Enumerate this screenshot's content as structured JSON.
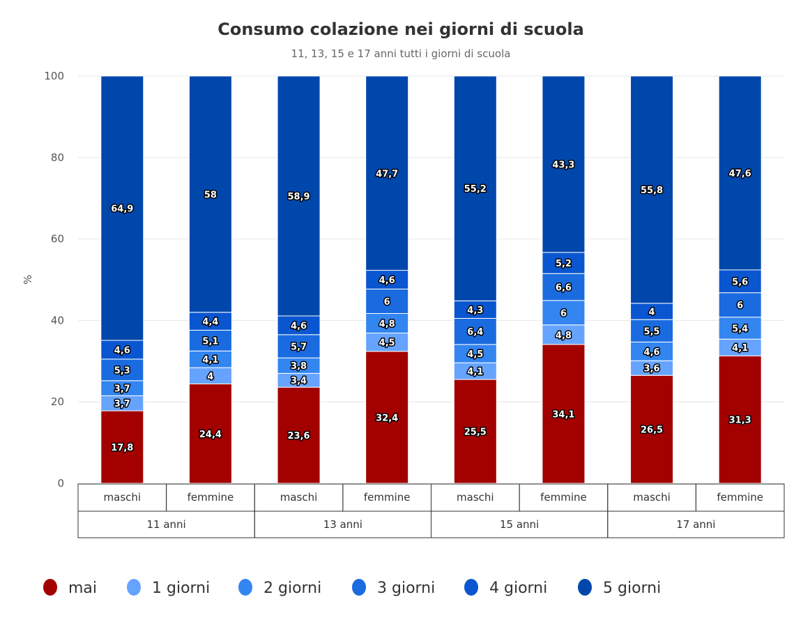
{
  "chart_data": {
    "type": "bar",
    "stacked": "percent",
    "title": "Consumo colazione nei giorni di scuola",
    "subtitle": "11, 13, 15 e 17 anni tutti i giorni di scuola",
    "ylabel": "%",
    "ylim": [
      0,
      100
    ],
    "yticks": [
      "0",
      "20",
      "40",
      "60",
      "80",
      "100"
    ],
    "categories": [
      "maschi",
      "femmine",
      "maschi",
      "femmine",
      "maschi",
      "femmine",
      "maschi",
      "femmine"
    ],
    "groups": [
      "11 anni",
      "13 anni",
      "15 anni",
      "17 anni"
    ],
    "legend_position": "bottom-left",
    "series": [
      {
        "name": "mai",
        "color": "#a30000",
        "values": [
          17.8,
          24.4,
          23.6,
          32.4,
          25.5,
          34.1,
          26.5,
          31.3
        ],
        "labels": [
          "17,8",
          "24,4",
          "23,6",
          "32,4",
          "25,5",
          "34,1",
          "26,5",
          "31,3"
        ]
      },
      {
        "name": "1 giorni",
        "color": "#66a3ff",
        "values": [
          3.7,
          4,
          3.4,
          4.5,
          4.1,
          4.8,
          3.6,
          4.1
        ],
        "labels": [
          "3,7",
          "4",
          "3,4",
          "4,5",
          "4,1",
          "4,8",
          "3,6",
          "4,1"
        ]
      },
      {
        "name": "2 giorni",
        "color": "#3385f0",
        "values": [
          3.7,
          4.1,
          3.8,
          4.8,
          4.5,
          6,
          4.6,
          5.4
        ],
        "labels": [
          "3,7",
          "4,1",
          "3,8",
          "4,8",
          "4,5",
          "6",
          "4,6",
          "5,4"
        ]
      },
      {
        "name": "3 giorni",
        "color": "#1a6be0",
        "values": [
          5.3,
          5.1,
          5.7,
          6,
          6.4,
          6.6,
          5.5,
          6
        ],
        "labels": [
          "5,3",
          "5,1",
          "5,7",
          "6",
          "6,4",
          "6,6",
          "5,5",
          "6"
        ]
      },
      {
        "name": "4 giorni",
        "color": "#0a56d0",
        "values": [
          4.6,
          4.4,
          4.6,
          4.6,
          4.3,
          5.2,
          4,
          5.6
        ],
        "labels": [
          "4,6",
          "4,4",
          "4,6",
          "4,6",
          "4,3",
          "5,2",
          "4",
          "5,6"
        ]
      },
      {
        "name": "5 giorni",
        "color": "#0047ab",
        "values": [
          64.9,
          58,
          58.9,
          47.7,
          55.2,
          43.3,
          55.8,
          47.6
        ],
        "labels": [
          "64,9",
          "58",
          "58,9",
          "47,7",
          "55,2",
          "43,3",
          "55,8",
          "47,6"
        ]
      }
    ]
  }
}
